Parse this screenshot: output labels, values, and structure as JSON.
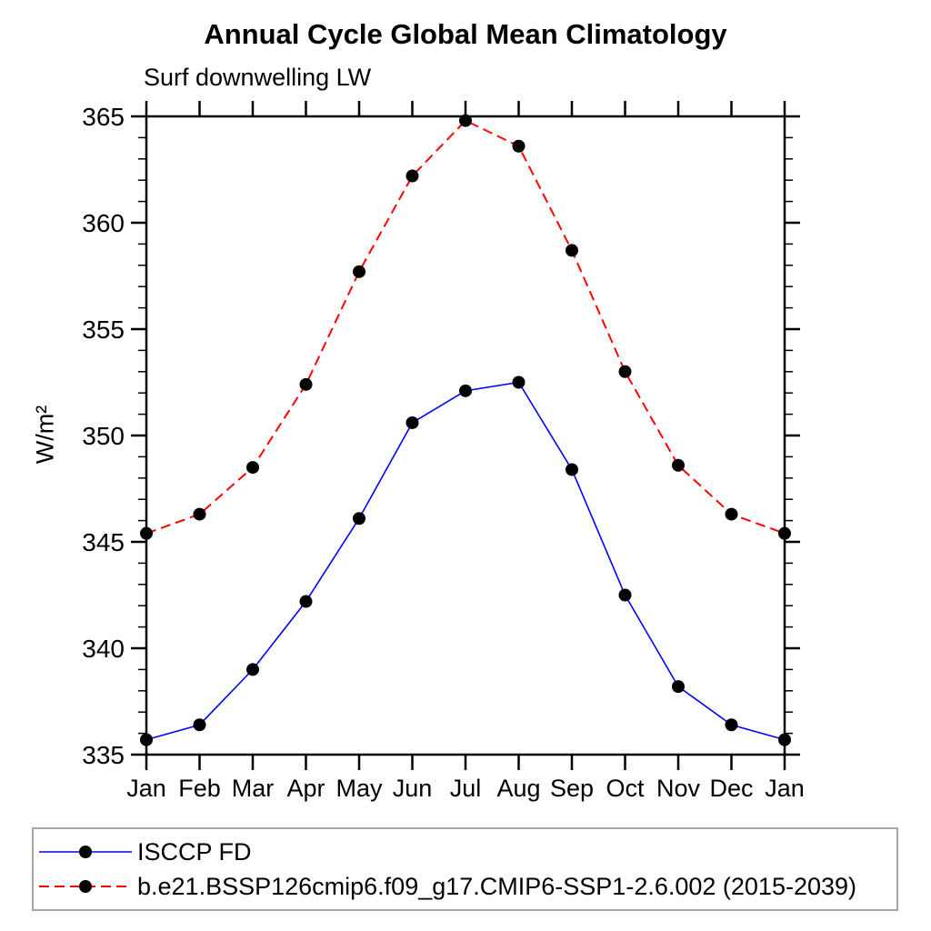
{
  "chart_data": {
    "type": "line",
    "title": "Annual Cycle Global Mean Climatology",
    "subtitle": "Surf downwelling LW",
    "xlabel": "",
    "ylabel": "W/m²",
    "categories": [
      "Jan",
      "Feb",
      "Mar",
      "Apr",
      "May",
      "Jun",
      "Jul",
      "Aug",
      "Sep",
      "Oct",
      "Nov",
      "Dec",
      "Jan"
    ],
    "ylim": [
      335,
      365
    ],
    "ytick_major_interval": 5,
    "ytick_minor_interval": 1,
    "grid": false,
    "legend_position": "bottom-left-box",
    "axis_color": "#000000",
    "marker": "filled-circle",
    "marker_color": "#000000",
    "series": [
      {
        "name": "ISCCP FD",
        "color": "#0000ff",
        "line_style": "solid",
        "values": [
          335.7,
          336.4,
          339.0,
          342.2,
          346.1,
          350.6,
          352.1,
          352.5,
          348.4,
          342.5,
          338.2,
          336.4,
          335.7
        ]
      },
      {
        "name": "b.e21.BSSP126cmip6.f09_g17.CMIP6-SSP1-2.6.002 (2015-2039)",
        "color": "#ff0000",
        "line_style": "dashed",
        "values": [
          345.4,
          346.3,
          348.5,
          352.4,
          357.7,
          362.2,
          364.8,
          363.6,
          358.7,
          353.0,
          348.6,
          346.3,
          345.4
        ]
      }
    ]
  }
}
